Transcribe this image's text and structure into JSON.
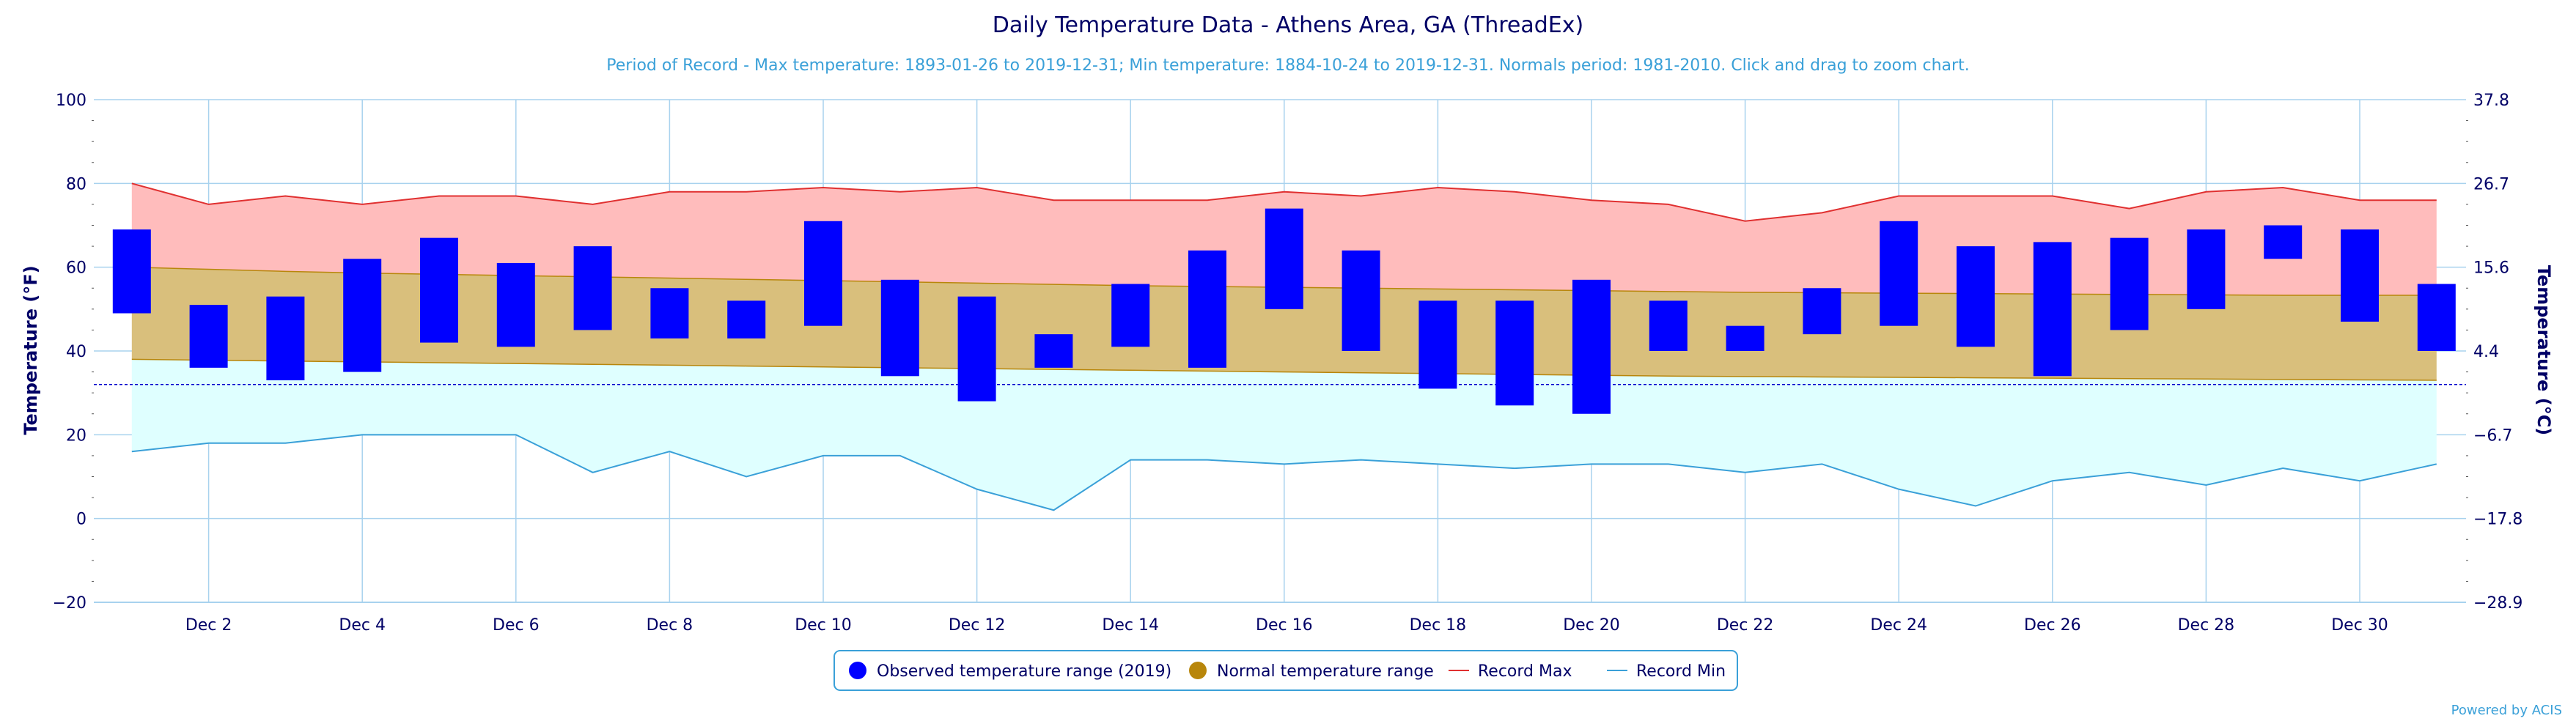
{
  "title": "Daily Temperature Data - Athens Area, GA (ThreadEx)",
  "subtitle": "Period of Record - Max temperature: 1893-01-26 to 2019-12-31; Min temperature: 1884-10-24 to 2019-12-31. Normals period: 1981-2010. Click and drag to zoom chart.",
  "credit": "Powered by ACIS",
  "colors": {
    "observed": "#0000ff",
    "normal_fill": "#d9bf7c",
    "normal_line": "#b8860b",
    "legend_normal_dot": "#b8860b",
    "record_max_line": "#e03030",
    "record_max_fill": "#ffbcbc",
    "record_min_line": "#3aa0d8",
    "record_min_fill": "#dfffff",
    "freeze_line": "#0000cc",
    "grid": "#a8d2ee",
    "text": "#000066",
    "legend_border": "#3aa0d8"
  },
  "chart_data": {
    "type": "floating-bar-with-area-bands",
    "x_type": "date",
    "dates": [
      "2019-12-01",
      "2019-12-02",
      "2019-12-03",
      "2019-12-04",
      "2019-12-05",
      "2019-12-06",
      "2019-12-07",
      "2019-12-08",
      "2019-12-09",
      "2019-12-10",
      "2019-12-11",
      "2019-12-12",
      "2019-12-13",
      "2019-12-14",
      "2019-12-15",
      "2019-12-16",
      "2019-12-17",
      "2019-12-18",
      "2019-12-19",
      "2019-12-20",
      "2019-12-21",
      "2019-12-22",
      "2019-12-23",
      "2019-12-24",
      "2019-12-25",
      "2019-12-26",
      "2019-12-27",
      "2019-12-28",
      "2019-12-29",
      "2019-12-30",
      "2019-12-31"
    ],
    "x_tick_labels": [
      "Dec 2",
      "Dec 4",
      "Dec 6",
      "Dec 8",
      "Dec 10",
      "Dec 12",
      "Dec 14",
      "Dec 16",
      "Dec 18",
      "Dec 20",
      "Dec 22",
      "Dec 24",
      "Dec 26",
      "Dec 28",
      "Dec 30"
    ],
    "y_left": {
      "label": "Temperature (°F)",
      "range": [
        -20,
        100
      ],
      "tick_labels": [
        "100",
        "80",
        "60",
        "40",
        "20",
        "0",
        "−20"
      ]
    },
    "y_right": {
      "label": "Temperature (°C)",
      "tick_labels": [
        "37.8",
        "26.7",
        "15.6",
        "4.4",
        "−6.7",
        "−17.8",
        "−28.9"
      ]
    },
    "freeze_line_f": 32,
    "grid": true,
    "legend_position": "bottom-center",
    "legend": [
      {
        "name": "Observed temperature range (2019)",
        "symbol": "dot",
        "color": "#0000ff"
      },
      {
        "name": "Normal temperature range",
        "symbol": "dot",
        "color": "#b8860b"
      },
      {
        "name": "Record Max",
        "symbol": "line",
        "color": "#e03030"
      },
      {
        "name": "Record Min",
        "symbol": "line",
        "color": "#3aa0d8"
      }
    ],
    "series": {
      "observed_high": [
        69,
        51,
        53,
        62,
        67,
        61,
        65,
        55,
        52,
        71,
        57,
        53,
        44,
        56,
        64,
        74,
        64,
        52,
        52,
        57,
        52,
        46,
        55,
        71,
        65,
        66,
        67,
        69,
        70,
        69,
        56
      ],
      "observed_low": [
        49,
        36,
        33,
        35,
        42,
        41,
        45,
        43,
        43,
        46,
        34,
        28,
        36,
        41,
        36,
        50,
        40,
        31,
        27,
        25,
        40,
        40,
        44,
        46,
        41,
        34,
        45,
        50,
        62,
        47,
        40
      ],
      "normal_high": [
        60,
        59.5,
        59,
        58.6,
        58.3,
        58,
        57.7,
        57.4,
        57.1,
        56.8,
        56.5,
        56.2,
        55.9,
        55.6,
        55.4,
        55.2,
        55,
        54.8,
        54.6,
        54.4,
        54.2,
        54,
        53.9,
        53.8,
        53.7,
        53.6,
        53.5,
        53.4,
        53.3,
        53.3,
        53.3
      ],
      "normal_low": [
        38,
        37.8,
        37.6,
        37.4,
        37.2,
        37,
        36.8,
        36.6,
        36.4,
        36.2,
        36,
        35.8,
        35.6,
        35.4,
        35.2,
        35,
        34.8,
        34.6,
        34.4,
        34.2,
        34,
        33.9,
        33.8,
        33.7,
        33.6,
        33.5,
        33.4,
        33.3,
        33.2,
        33.1,
        33
      ],
      "record_max": [
        80,
        75,
        77,
        75,
        77,
        77,
        75,
        78,
        78,
        79,
        78,
        79,
        76,
        76,
        76,
        78,
        77,
        79,
        78,
        76,
        75,
        71,
        73,
        77,
        77,
        77,
        74,
        78,
        79,
        76,
        76
      ],
      "record_min": [
        16,
        18,
        18,
        20,
        20,
        20,
        11,
        16,
        10,
        15,
        15,
        7,
        2,
        14,
        14,
        13,
        14,
        13,
        12,
        13,
        13,
        11,
        13,
        7,
        3,
        9,
        11,
        8,
        12,
        9,
        13
      ]
    }
  }
}
